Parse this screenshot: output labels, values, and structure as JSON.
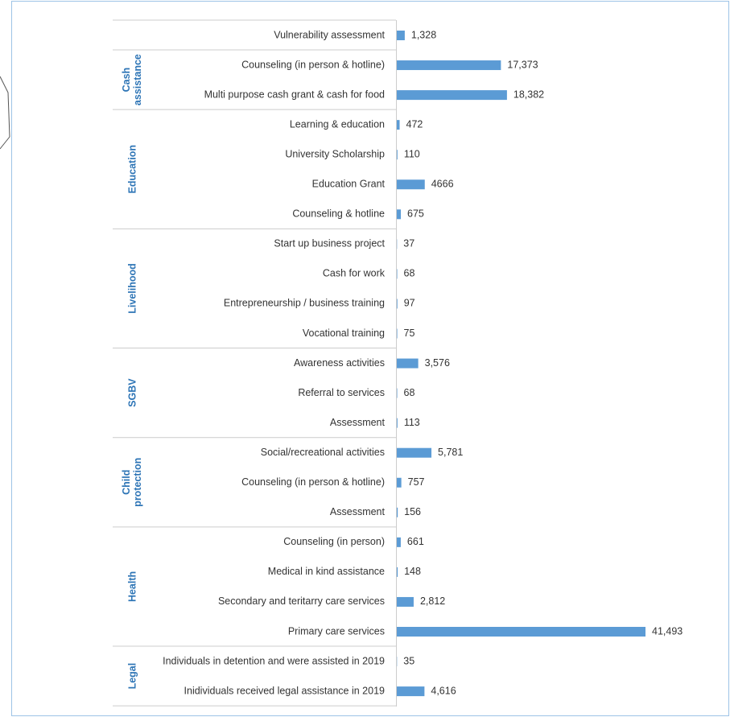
{
  "chart_data": {
    "type": "bar",
    "orientation": "horizontal",
    "color": "#5b9bd5",
    "groups": [
      {
        "name": null,
        "categories": [
          "Vulnerability assessment"
        ],
        "values": [
          1328
        ],
        "value_labels": [
          "1,328"
        ]
      },
      {
        "name": "Cash assistance",
        "categories": [
          "Counseling (in person & hotline)",
          "Multi purpose cash grant & cash for food"
        ],
        "values": [
          17373,
          18382
        ],
        "value_labels": [
          "17,373",
          "18,382"
        ]
      },
      {
        "name": "Education",
        "categories": [
          "Learning & education",
          "University Scholarship",
          "Education Grant",
          "Counseling & hotline"
        ],
        "values": [
          472,
          110,
          4666,
          675
        ],
        "value_labels": [
          "472",
          "110",
          "4666",
          "675"
        ]
      },
      {
        "name": "Livelihood",
        "categories": [
          "Start up business project",
          "Cash for work",
          "Entrepreneurship / business training",
          "Vocational training"
        ],
        "values": [
          37,
          68,
          97,
          75
        ],
        "value_labels": [
          "37",
          "68",
          "97",
          "75"
        ]
      },
      {
        "name": "SGBV",
        "categories": [
          "Awareness activities",
          "Referral to services",
          "Assessment"
        ],
        "values": [
          3576,
          68,
          113
        ],
        "value_labels": [
          "3,576",
          "68",
          "113"
        ]
      },
      {
        "name": "Child protection",
        "categories": [
          "Social/recreational activities",
          "Counseling (in person & hotline)",
          "Assessment"
        ],
        "values": [
          5781,
          757,
          156
        ],
        "value_labels": [
          "5,781",
          "757",
          "156"
        ]
      },
      {
        "name": "Health",
        "categories": [
          "Counseling (in person)",
          "Medical in kind assistance",
          "Secondary and teritarry care services",
          "Primary care services"
        ],
        "values": [
          661,
          148,
          2812,
          41493
        ],
        "value_labels": [
          "661",
          "148",
          "2,812",
          "41,493"
        ]
      },
      {
        "name": "Legal",
        "categories": [
          "Individuals in detention and were assisted in 2019",
          "Inidividuals received legal assistance in 2019"
        ],
        "values": [
          35,
          4616
        ],
        "value_labels": [
          "35",
          "4,616"
        ]
      }
    ]
  }
}
